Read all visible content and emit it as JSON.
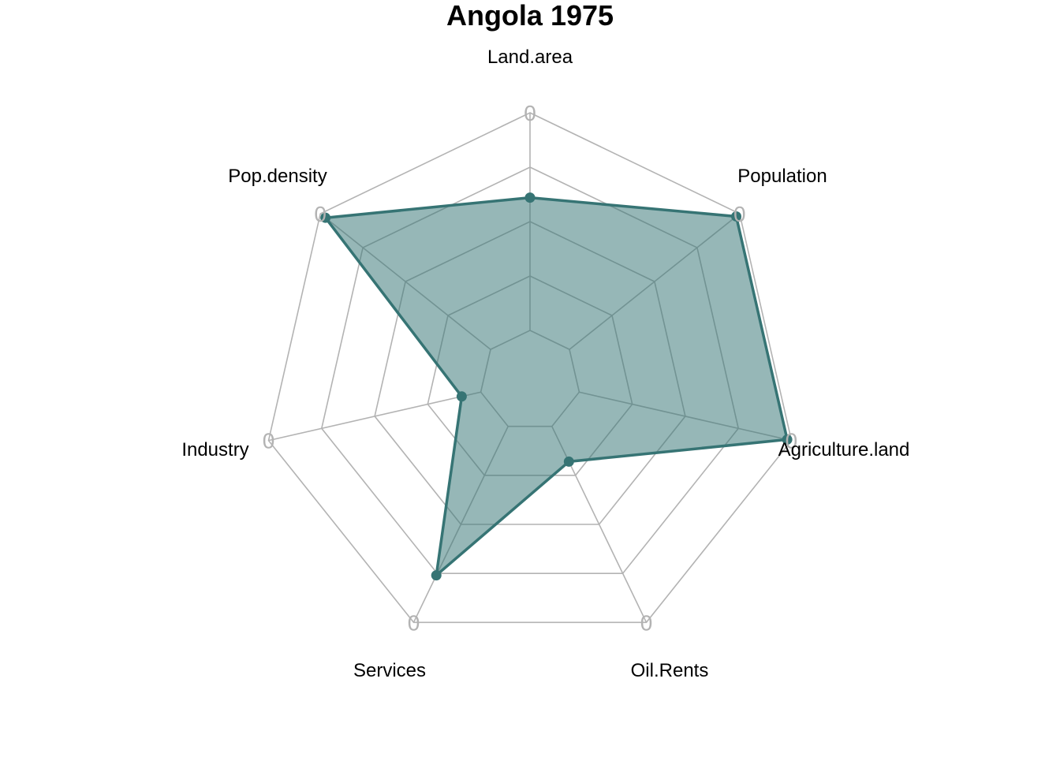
{
  "chart_data": {
    "type": "radar",
    "title": "Angola 1975",
    "axes": [
      "Land.area",
      "Population",
      "Agriculture.land",
      "Oil.Rents",
      "Services",
      "Industry",
      "Pop.density"
    ],
    "series": [
      {
        "values": [
          0.61,
          0.98,
          0.98,
          0.18,
          0.76,
          0.09,
          0.97
        ]
      }
    ],
    "ring_labels": [
      "0",
      "0",
      "0",
      "0",
      "0",
      "0",
      "0"
    ],
    "range": [
      0,
      1
    ],
    "grid_levels": 5,
    "colors": {
      "line": "#367474",
      "fill": "#367474",
      "grid": "#b3b3b3",
      "text": "#000000"
    }
  }
}
